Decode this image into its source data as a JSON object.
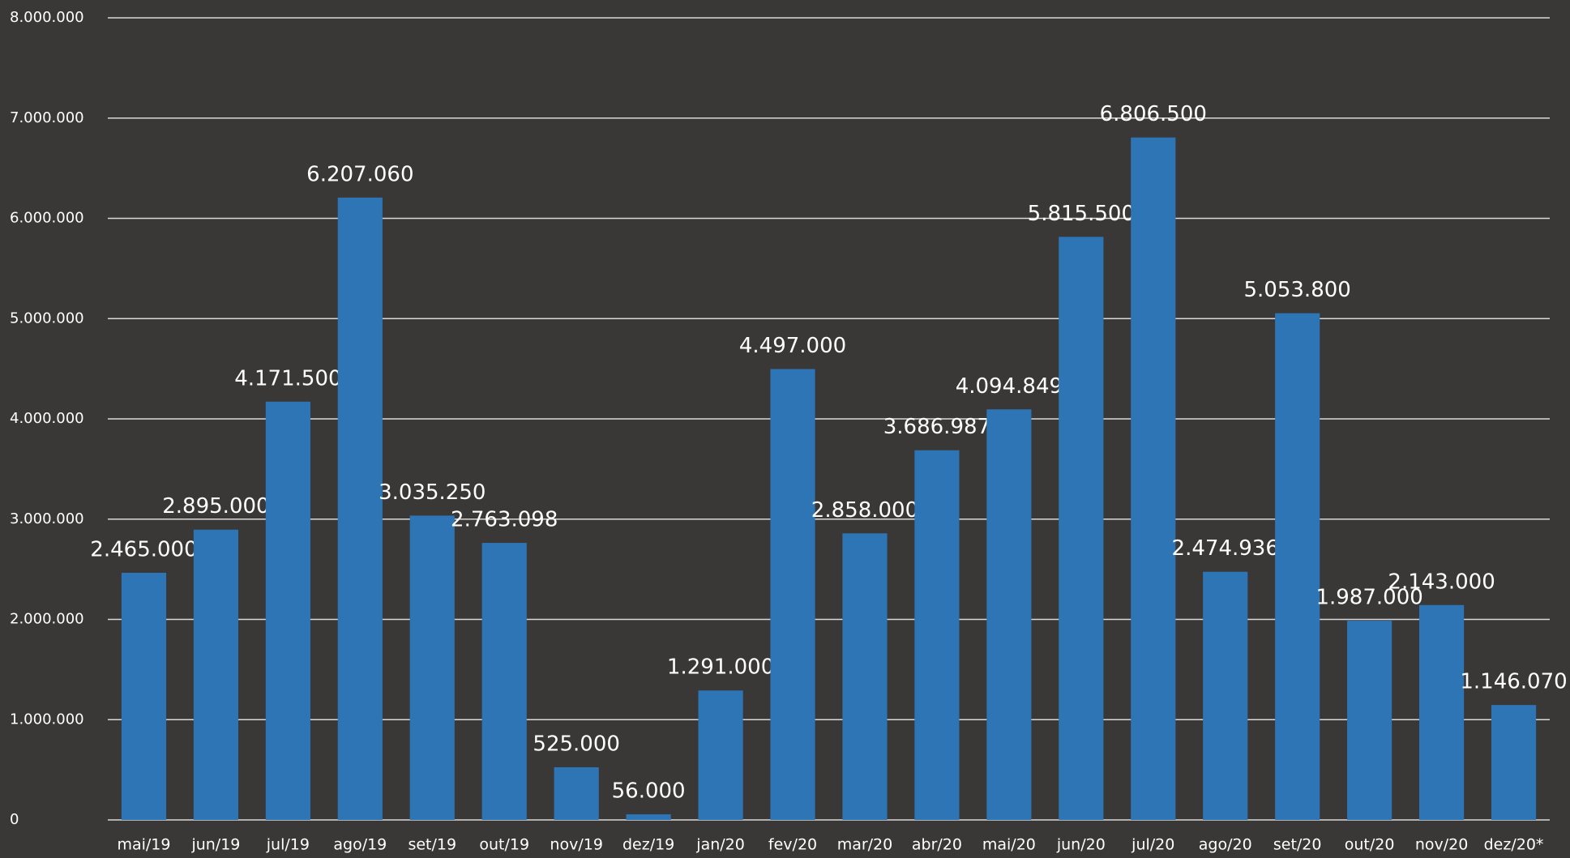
{
  "chart_data": {
    "type": "bar",
    "categories": [
      "mai/19",
      "jun/19",
      "jul/19",
      "ago/19",
      "set/19",
      "out/19",
      "nov/19",
      "dez/19",
      "jan/20",
      "fev/20",
      "mar/20",
      "abr/20",
      "mai/20",
      "jun/20",
      "jul/20",
      "ago/20",
      "set/20",
      "out/20",
      "nov/20",
      "dez/20*"
    ],
    "values": [
      2465000,
      2895000,
      4171500,
      6207060,
      3035250,
      2763098,
      525000,
      56000,
      1291000,
      4497000,
      2858000,
      3686987,
      4094849,
      5815500,
      6806500,
      2474936,
      5053800,
      1987000,
      2143000,
      1146070
    ],
    "value_labels": [
      "2.465.000",
      "2.895.000",
      "4.171.500",
      "6.207.060",
      "3.035.250",
      "2.763.098",
      "525.000",
      "56.000",
      "1.291.000",
      "4.497.000",
      "2.858.000",
      "3.686.987",
      "4.094.849",
      "5.815.500",
      "6.806.500",
      "2.474.936",
      "5.053.800",
      "1.987.000",
      "2.143.000",
      "1.146.070"
    ],
    "color": "#2e75b6",
    "ylim": [
      0,
      8000000
    ],
    "yticks": [
      0,
      {
        "value": 1000000,
        "label": "1.000.000"
      },
      {
        "value": 2000000,
        "label": "2.000.000"
      },
      {
        "value": 3000000,
        "label": "3.000.000"
      },
      {
        "value": 4000000,
        "label": "4.000.000"
      },
      {
        "value": 5000000,
        "label": "5.000.000"
      },
      {
        "value": 6000000,
        "label": "6.000.000"
      },
      {
        "value": 7000000,
        "label": "7.000.000"
      },
      {
        "value": 8000000,
        "label": "8.000.000"
      }
    ],
    "grid": true
  }
}
